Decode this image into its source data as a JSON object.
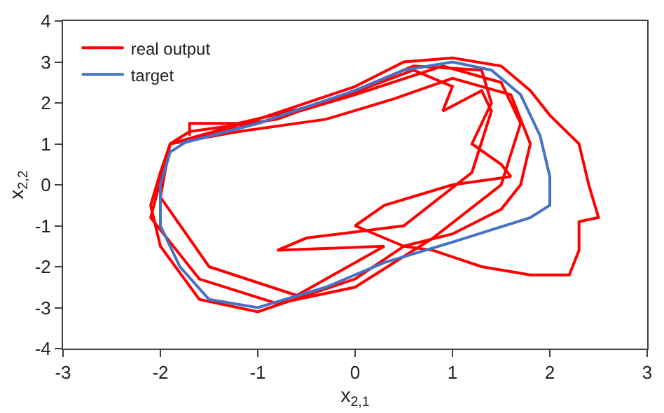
{
  "chart_data": {
    "type": "line",
    "xlabel": "x$_{2,1}$",
    "ylabel": "x$_{2,2}$",
    "xlim": [
      -3,
      3
    ],
    "xticks": [
      -3,
      -2,
      -1,
      0,
      1,
      2,
      3
    ],
    "ylim": [
      -4,
      4
    ],
    "yticks": [
      -4,
      -3,
      -2,
      -1,
      0,
      1,
      2,
      3,
      4
    ],
    "legend": "top left",
    "marker": "none",
    "line_style": "solid",
    "series": [
      {
        "name": "real output",
        "color": "#ff0000",
        "x": [
          -1.9,
          -1.0,
          0.0,
          0.5,
          1.0,
          1.5,
          1.8,
          2.0,
          2.3,
          2.4,
          2.5,
          2.3,
          2.3,
          2.2,
          1.8,
          1.3,
          0.8,
          0.5,
          0.0,
          -0.5,
          -1.0,
          -1.6,
          -2.0,
          -2.1,
          -2.0,
          -1.9,
          -1.7,
          -0.8,
          0.0,
          0.6,
          1.3,
          1.4,
          1.2,
          1.5,
          1.6,
          1.0,
          0.3,
          0.0,
          0.5,
          1.0,
          1.5,
          1.7,
          1.8,
          1.6,
          1.0,
          0.4,
          -0.3,
          -1.2,
          -1.9,
          -2.1,
          -1.6,
          -0.8,
          0.0,
          0.8,
          1.5,
          1.7,
          1.5,
          0.9,
          0.0,
          -1.0,
          -1.9,
          -2.0,
          -1.5,
          -0.6,
          0.3,
          -0.8,
          -0.5,
          0.5,
          1.2,
          1.4,
          1.3,
          0.9,
          1.0,
          0.6,
          -0.3,
          -1.2,
          -1.7,
          -1.7
        ],
        "values": [
          1.0,
          1.6,
          2.4,
          3.0,
          3.1,
          2.9,
          2.3,
          1.7,
          1.0,
          0.0,
          -0.8,
          -0.9,
          -1.6,
          -2.2,
          -2.2,
          -2.0,
          -1.6,
          -1.5,
          -2.3,
          -2.7,
          -3.1,
          -2.8,
          -1.5,
          -0.5,
          0.3,
          1.0,
          1.3,
          1.6,
          2.3,
          2.9,
          2.8,
          2.0,
          1.0,
          0.5,
          0.2,
          0.0,
          -0.5,
          -1.0,
          -1.5,
          -1.2,
          -0.6,
          0.0,
          1.0,
          2.2,
          2.6,
          2.1,
          1.6,
          1.3,
          1.0,
          -0.8,
          -2.3,
          -2.9,
          -2.5,
          -1.3,
          0.0,
          1.5,
          2.5,
          2.9,
          2.2,
          1.5,
          1.0,
          -0.3,
          -2.0,
          -2.7,
          -1.5,
          -1.6,
          -1.3,
          -1.0,
          0.3,
          1.8,
          2.3,
          1.8,
          2.4,
          2.8,
          2.0,
          1.5,
          1.5,
          1.2
        ]
      },
      {
        "name": "target",
        "color": "#4472c4",
        "x": [
          -1.8,
          -1.0,
          0.0,
          0.5,
          1.0,
          1.4,
          1.7,
          1.9,
          2.0,
          2.0,
          1.8,
          1.0,
          0.3,
          -0.3,
          -1.0,
          -1.5,
          -1.8,
          -2.0,
          -2.0,
          -1.9,
          -1.7
        ],
        "values": [
          1.0,
          1.5,
          2.3,
          2.8,
          3.0,
          2.8,
          2.2,
          1.2,
          0.2,
          -0.5,
          -0.8,
          -1.4,
          -1.9,
          -2.5,
          -3.0,
          -2.8,
          -2.0,
          -1.0,
          0.0,
          0.8,
          1.1
        ]
      }
    ]
  }
}
